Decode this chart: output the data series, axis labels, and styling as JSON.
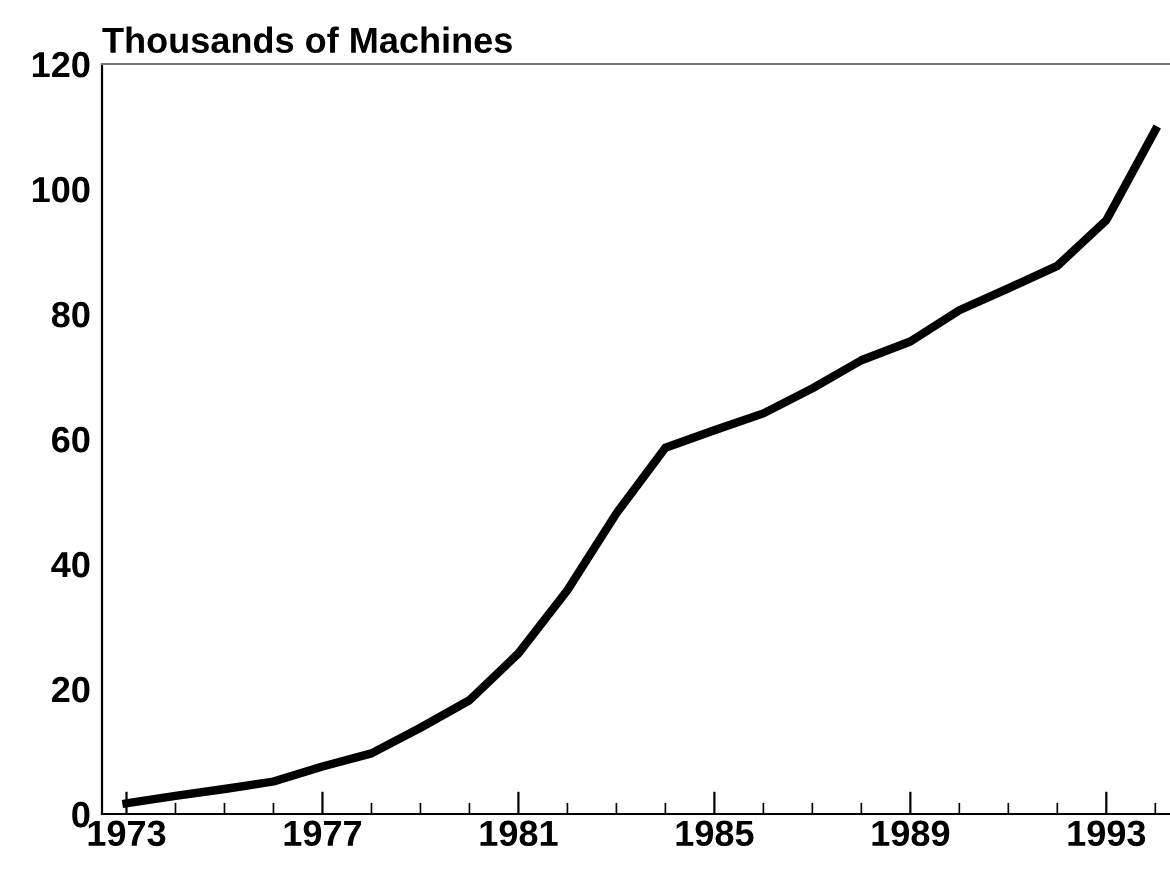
{
  "chart_data": {
    "type": "line",
    "title": "Thousands of Machines",
    "x": [
      1973,
      1974,
      1975,
      1976,
      1977,
      1978,
      1979,
      1980,
      1981,
      1982,
      1983,
      1984,
      1985,
      1986,
      1987,
      1988,
      1989,
      1990,
      1991,
      1992,
      1993,
      1994
    ],
    "series": [
      {
        "color": "#000000",
        "values": [
          1.7,
          2.9,
          4.0,
          5.2,
          7.6,
          9.7,
          13.8,
          18.2,
          25.7,
          35.8,
          48.1,
          58.6,
          61.4,
          64.1,
          68.1,
          72.6,
          75.6,
          80.6,
          84.1,
          87.7,
          95.0,
          109.4
        ]
      }
    ],
    "xlim": [
      1972.5,
      1994.3
    ],
    "xticks": [
      1973,
      1977,
      1981,
      1985,
      1989,
      1993
    ],
    "ylim": [
      0,
      120
    ],
    "yticks": [
      0,
      20,
      40,
      60,
      80,
      100,
      120
    ],
    "grid": false,
    "legend": false,
    "marker": "none",
    "line_style": "solid"
  }
}
